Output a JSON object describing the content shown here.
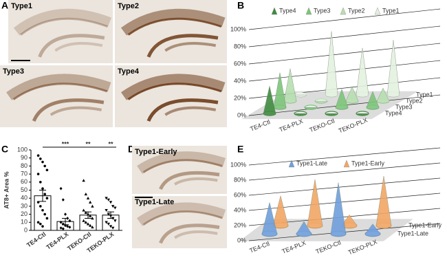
{
  "panels": {
    "A": {
      "label": "A",
      "images": [
        "Type1",
        "Type2",
        "Type3",
        "Type4"
      ]
    },
    "D": {
      "label": "D",
      "images": [
        "Type1-Early",
        "Type1-Late"
      ]
    }
  },
  "chart_data": [
    {
      "type": "cone3d",
      "panel": "B",
      "categories": [
        "TE4-Ctl",
        "TE4-PLX",
        "TEKO-Ctl",
        "TEKO-PLX"
      ],
      "series": [
        {
          "name": "Type4",
          "color": "#3f8a3f",
          "values": [
            38,
            0,
            0,
            0
          ]
        },
        {
          "name": "Type3",
          "color": "#7cc47a",
          "values": [
            48,
            0,
            25,
            22
          ]
        },
        {
          "name": "Type2",
          "color": "#b7dfb0",
          "values": [
            45,
            0,
            20,
            18
          ]
        },
        {
          "name": "Type1",
          "color": "#e3f1df",
          "values": [
            0,
            88,
            65,
            76
          ]
        }
      ],
      "ylim": [
        0,
        100
      ],
      "yticks": [
        {
          "value": 0,
          "label": "0%"
        },
        {
          "value": 20,
          "label": "20%"
        },
        {
          "value": 40,
          "label": "40%"
        },
        {
          "value": 60,
          "label": "60%"
        },
        {
          "value": 80,
          "label": "80%"
        },
        {
          "value": 100,
          "label": "100%"
        }
      ]
    },
    {
      "type": "bar",
      "panel": "C",
      "ylabel": "AT8+ Area %",
      "categories": [
        "TE4-Ctl",
        "TE4-PLX",
        "TEKO-Ctl",
        "TEKO-PLX"
      ],
      "values": [
        43,
        11,
        19,
        19
      ],
      "errors": [
        7,
        4,
        4,
        4
      ],
      "points": [
        [
          93,
          89,
          85,
          80,
          75,
          70,
          60,
          52,
          45,
          40,
          35,
          30,
          25,
          20,
          15,
          10,
          8,
          5
        ],
        [
          52,
          38,
          20,
          15,
          12,
          10,
          8,
          6,
          5,
          4,
          3,
          2
        ],
        [
          62,
          45,
          40,
          35,
          30,
          25,
          22,
          20,
          18,
          15,
          12,
          10,
          8,
          6,
          4
        ],
        [
          40,
          38,
          35,
          30,
          28,
          25,
          20,
          18,
          15,
          12,
          10,
          8,
          5,
          3
        ]
      ],
      "significance": [
        null,
        "***",
        "**",
        "**"
      ],
      "ylim": [
        0,
        100
      ],
      "yticks": [
        0,
        10,
        20,
        30,
        40,
        50,
        60,
        70,
        80,
        90,
        100
      ]
    },
    {
      "type": "cone3d",
      "panel": "E",
      "categories": [
        "TE4-Ctl",
        "TE4-PLX",
        "TEKO-Ctl",
        "TEKO-PLX"
      ],
      "series": [
        {
          "name": "Type1-Late",
          "color": "#6f9fdc",
          "values": [
            38,
            15,
            62,
            12
          ]
        },
        {
          "name": "Type1-Early",
          "color": "#f2a664",
          "values": [
            36,
            56,
            13,
            60
          ]
        }
      ],
      "ylim": [
        0,
        100
      ],
      "yticks": [
        {
          "value": 0,
          "label": "0%"
        },
        {
          "value": 20,
          "label": "20%"
        },
        {
          "value": 40,
          "label": "40%"
        },
        {
          "value": 60,
          "label": "60%"
        },
        {
          "value": 80,
          "label": "80%"
        },
        {
          "value": 100,
          "label": "100%"
        }
      ]
    }
  ]
}
